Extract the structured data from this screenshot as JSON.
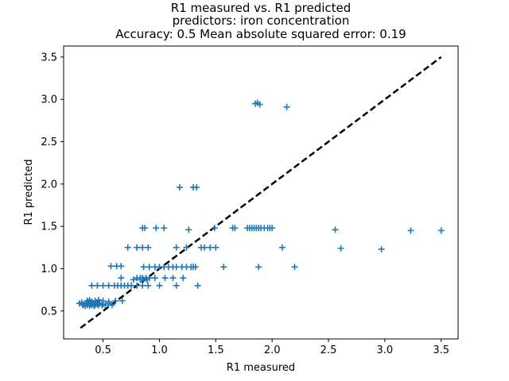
{
  "chart_data": {
    "type": "scatter",
    "title_lines": [
      "R1 measured vs. R1 predicted",
      "predictors: iron concentration",
      "Accuracy: 0.5 Mean absolute squared error: 0.19"
    ],
    "xlabel": "R1 measured",
    "ylabel": "R1 predicted",
    "xlim": [
      0.15,
      3.65
    ],
    "ylim": [
      0.17,
      3.63
    ],
    "xticks": [
      "0.5",
      "1.0",
      "1.5",
      "2.0",
      "2.5",
      "3.0",
      "3.5"
    ],
    "yticks": [
      "0.5",
      "1.0",
      "1.5",
      "2.0",
      "2.5",
      "3.0",
      "3.5"
    ],
    "marker": "plus",
    "grid": false,
    "legend": "none",
    "colors": {
      "points": "#1f77b4",
      "reference_line": "#000000"
    },
    "reference_line": {
      "style": "dashed",
      "from": [
        0.3,
        0.3
      ],
      "to": [
        3.5,
        3.5
      ]
    },
    "series": [
      {
        "points": [
          [
            0.29,
            0.59
          ],
          [
            0.31,
            0.6
          ],
          [
            0.32,
            0.57
          ],
          [
            0.33,
            0.58
          ],
          [
            0.34,
            0.56
          ],
          [
            0.35,
            0.59
          ],
          [
            0.36,
            0.57
          ],
          [
            0.37,
            0.6
          ],
          [
            0.38,
            0.56
          ],
          [
            0.39,
            0.58
          ],
          [
            0.4,
            0.57
          ],
          [
            0.41,
            0.59
          ],
          [
            0.42,
            0.56
          ],
          [
            0.43,
            0.57
          ],
          [
            0.44,
            0.6
          ],
          [
            0.45,
            0.58
          ],
          [
            0.46,
            0.57
          ],
          [
            0.47,
            0.59
          ],
          [
            0.49,
            0.57
          ],
          [
            0.5,
            0.58
          ],
          [
            0.52,
            0.57
          ],
          [
            0.55,
            0.59
          ],
          [
            0.58,
            0.57
          ],
          [
            0.36,
            0.62
          ],
          [
            0.38,
            0.63
          ],
          [
            0.4,
            0.61
          ],
          [
            0.43,
            0.62
          ],
          [
            0.46,
            0.63
          ],
          [
            0.5,
            0.62
          ],
          [
            0.55,
            0.61
          ],
          [
            0.61,
            0.62
          ],
          [
            0.67,
            0.62
          ],
          [
            0.4,
            0.8
          ],
          [
            0.45,
            0.8
          ],
          [
            0.5,
            0.8
          ],
          [
            0.55,
            0.8
          ],
          [
            0.6,
            0.8
          ],
          [
            0.63,
            0.8
          ],
          [
            0.66,
            0.8
          ],
          [
            0.69,
            0.8
          ],
          [
            0.72,
            0.8
          ],
          [
            0.75,
            0.8
          ],
          [
            0.8,
            0.8
          ],
          [
            0.85,
            0.8
          ],
          [
            0.9,
            0.8
          ],
          [
            1.0,
            0.8
          ],
          [
            1.15,
            0.8
          ],
          [
            1.34,
            0.8
          ],
          [
            0.66,
            0.89
          ],
          [
            0.8,
            0.89
          ],
          [
            0.83,
            0.89
          ],
          [
            0.85,
            0.89
          ],
          [
            0.88,
            0.89
          ],
          [
            0.91,
            0.89
          ],
          [
            0.96,
            0.89
          ],
          [
            1.05,
            0.89
          ],
          [
            1.12,
            0.89
          ],
          [
            1.21,
            0.89
          ],
          [
            0.77,
            0.87
          ],
          [
            0.83,
            0.87
          ],
          [
            0.86,
            0.87
          ],
          [
            0.89,
            0.87
          ],
          [
            0.57,
            1.03
          ],
          [
            0.62,
            1.03
          ],
          [
            0.66,
            1.03
          ],
          [
            0.86,
            1.02
          ],
          [
            0.91,
            1.02
          ],
          [
            0.96,
            1.02
          ],
          [
            1.0,
            1.02
          ],
          [
            1.04,
            1.02
          ],
          [
            1.08,
            1.02
          ],
          [
            1.12,
            1.02
          ],
          [
            1.15,
            1.02
          ],
          [
            1.2,
            1.02
          ],
          [
            1.24,
            1.02
          ],
          [
            1.28,
            1.02
          ],
          [
            1.3,
            1.02
          ],
          [
            1.32,
            1.02
          ],
          [
            1.57,
            1.02
          ],
          [
            1.88,
            1.02
          ],
          [
            2.2,
            1.02
          ],
          [
            0.72,
            1.25
          ],
          [
            0.8,
            1.25
          ],
          [
            0.85,
            1.25
          ],
          [
            0.9,
            1.25
          ],
          [
            1.15,
            1.25
          ],
          [
            1.24,
            1.25
          ],
          [
            1.37,
            1.25
          ],
          [
            1.4,
            1.25
          ],
          [
            1.45,
            1.25
          ],
          [
            1.5,
            1.25
          ],
          [
            2.09,
            1.25
          ],
          [
            2.61,
            1.24
          ],
          [
            2.97,
            1.23
          ],
          [
            0.85,
            1.48
          ],
          [
            0.87,
            1.48
          ],
          [
            0.97,
            1.48
          ],
          [
            1.04,
            1.48
          ],
          [
            1.26,
            1.46
          ],
          [
            1.49,
            1.48
          ],
          [
            1.65,
            1.48
          ],
          [
            1.67,
            1.48
          ],
          [
            1.78,
            1.48
          ],
          [
            1.8,
            1.48
          ],
          [
            1.82,
            1.48
          ],
          [
            1.84,
            1.48
          ],
          [
            1.86,
            1.48
          ],
          [
            1.88,
            1.48
          ],
          [
            1.9,
            1.48
          ],
          [
            1.93,
            1.48
          ],
          [
            1.96,
            1.48
          ],
          [
            1.98,
            1.48
          ],
          [
            2.0,
            1.48
          ],
          [
            2.56,
            1.46
          ],
          [
            3.23,
            1.45
          ],
          [
            3.5,
            1.45
          ],
          [
            1.18,
            1.96
          ],
          [
            1.3,
            1.96
          ],
          [
            1.33,
            1.96
          ],
          [
            1.85,
            2.95
          ],
          [
            1.87,
            2.96
          ],
          [
            1.89,
            2.94
          ],
          [
            2.13,
            2.91
          ]
        ]
      }
    ]
  }
}
